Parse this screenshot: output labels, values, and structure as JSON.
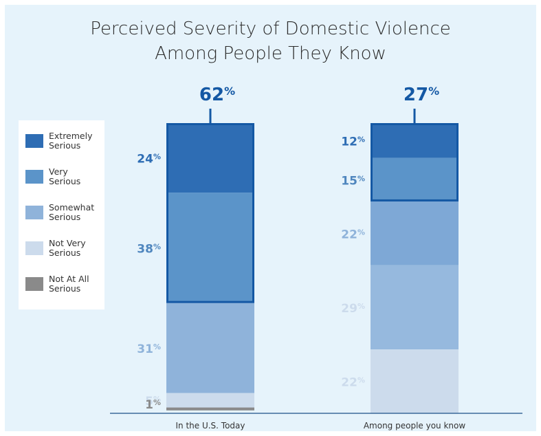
{
  "chart_data": {
    "type": "bar",
    "stacked": true,
    "title": "Perceived Severity of Domestic Violence Among People They Know",
    "title_lines": [
      "Perceived Severity of Domestic Violence",
      "Among People They Know"
    ],
    "categories": [
      "In the U.S. Today",
      "Among people you know"
    ],
    "unit": "%",
    "series": [
      {
        "name": "Extremely Serious",
        "values": [
          24,
          12
        ],
        "color": "#2e6db4"
      },
      {
        "name": "Very Serious",
        "values": [
          38,
          15
        ],
        "color": "#5b94c9"
      },
      {
        "name": "Somewhat Serious",
        "values": [
          31,
          22
        ],
        "color": "#8fb3da"
      },
      {
        "name": "Not Very Serious",
        "values": [
          5,
          29
        ],
        "color": "#ccdbec"
      },
      {
        "name": "Not At All Serious",
        "values": [
          1,
          22
        ],
        "color": "#8a8a8a"
      }
    ],
    "segments": [
      [
        {
          "value": 24,
          "color": "#2e6db4",
          "label": "24",
          "label_color": "#2e6db4"
        },
        {
          "value": 38,
          "color": "#5b94c9",
          "label": "38",
          "label_color": "#4f86be"
        },
        {
          "value": 31,
          "color": "#8fb3da",
          "label": "31",
          "label_color": "#8fb3da"
        },
        {
          "value": 5,
          "color": "#ccdbec",
          "label": "5",
          "label_color": "#ccdbec"
        },
        {
          "value": 1,
          "color": "#8a8a8a",
          "label": "1",
          "label_color": "#8a8a8a"
        }
      ],
      [
        {
          "value": 12,
          "color": "#2e6db4",
          "label": "12",
          "label_color": "#2e6db4"
        },
        {
          "value": 15,
          "color": "#5b94c9",
          "label": "15",
          "label_color": "#4f86be"
        },
        {
          "value": 22,
          "color": "#7ea8d6",
          "label": "22",
          "label_color": "#8fb3da"
        },
        {
          "value": 29,
          "color": "#96b9de",
          "label": "29",
          "label_color": "#ccdbec"
        },
        {
          "value": 22,
          "color": "#ccdbec",
          "label": "22",
          "label_color": "#ccdbec"
        }
      ]
    ],
    "highlights": [
      {
        "value": "62",
        "unit": "%",
        "covers_segments": 2
      },
      {
        "value": "27",
        "unit": "%",
        "covers_segments": 2
      }
    ],
    "highlight_color": "#1458a4",
    "axis_color": "#1a4f86",
    "legend_position": "left",
    "grid": false
  }
}
